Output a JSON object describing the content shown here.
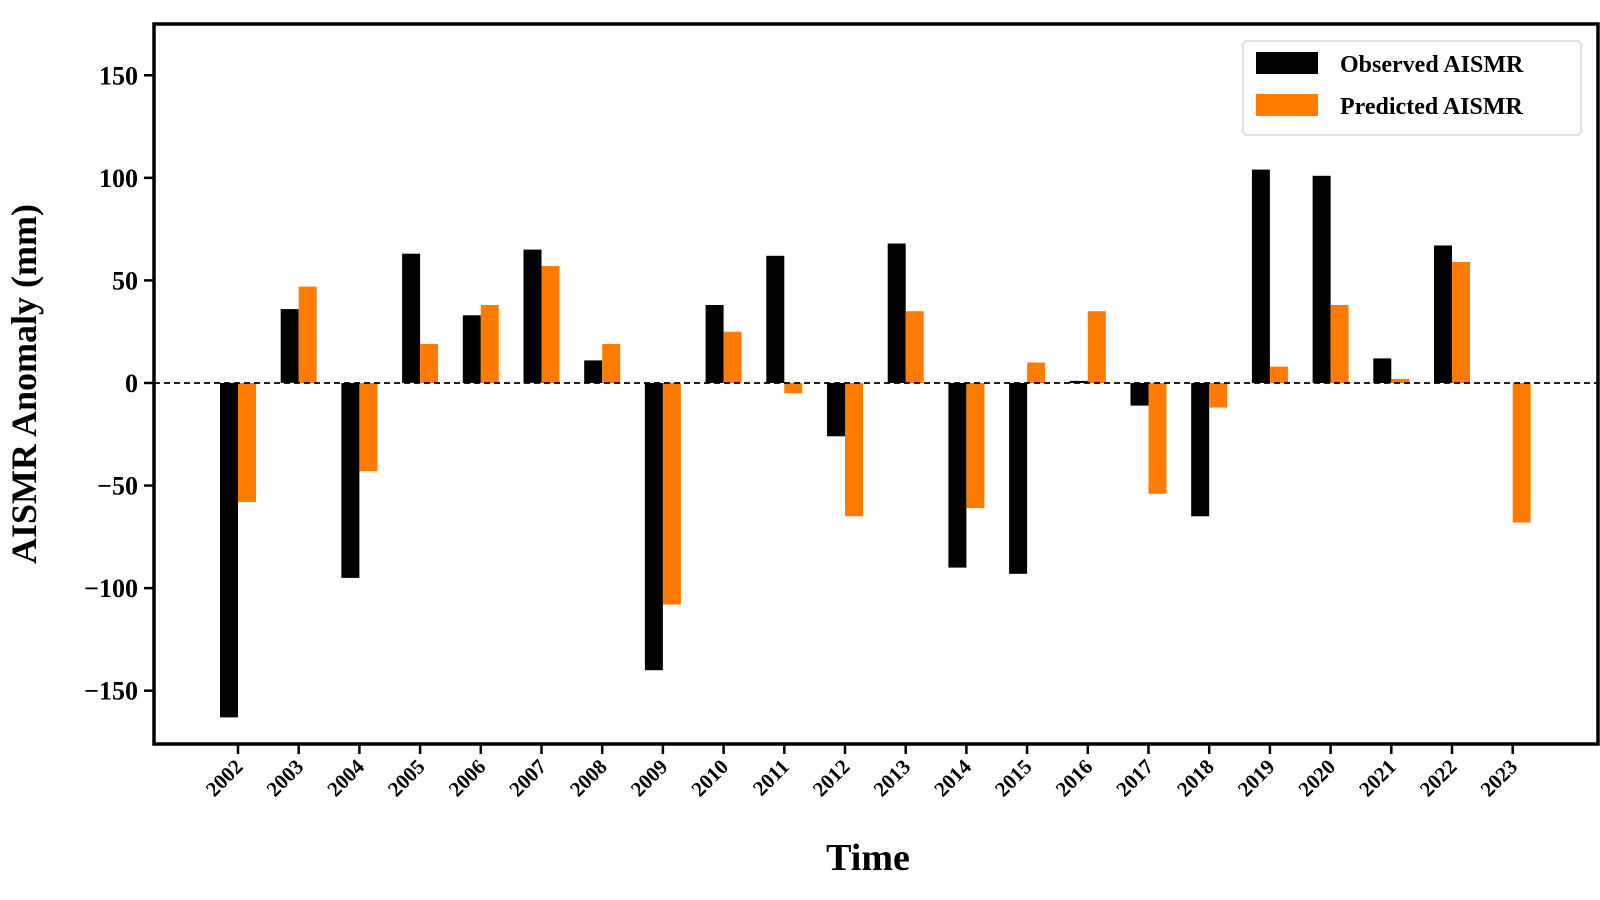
{
  "chart_data": {
    "type": "bar",
    "xlabel": "Time",
    "ylabel": "AISMR Anomaly (mm)",
    "ylim": [
      -176,
      175
    ],
    "yticks": [
      150,
      100,
      50,
      0,
      -50,
      -100,
      -150
    ],
    "ytick_labels": [
      "150",
      "100",
      "50",
      "0",
      "−50",
      "−100",
      "−150"
    ],
    "categories": [
      "2002",
      "2003",
      "2004",
      "2005",
      "2006",
      "2007",
      "2008",
      "2009",
      "2010",
      "2011",
      "2012",
      "2013",
      "2014",
      "2015",
      "2016",
      "2017",
      "2018",
      "2019",
      "2020",
      "2021",
      "2022",
      "2023"
    ],
    "series": [
      {
        "name": "Observed AISMR",
        "color": "#000000",
        "values": [
          -163,
          36,
          -95,
          63,
          33,
          65,
          11,
          -140,
          38,
          62,
          -26,
          68,
          -90,
          -93,
          1,
          -11,
          -65,
          104,
          101,
          12,
          67,
          null
        ]
      },
      {
        "name": "Predicted AISMR",
        "color": "#ff7c00",
        "values": [
          -58,
          47,
          -43,
          19,
          38,
          57,
          19,
          -108,
          25,
          -5,
          -65,
          35,
          -61,
          10,
          35,
          -54,
          -12,
          8,
          38,
          2,
          59,
          -68
        ]
      }
    ],
    "zero_line": "dashed",
    "legend_position": "top-right",
    "grid": false
  }
}
